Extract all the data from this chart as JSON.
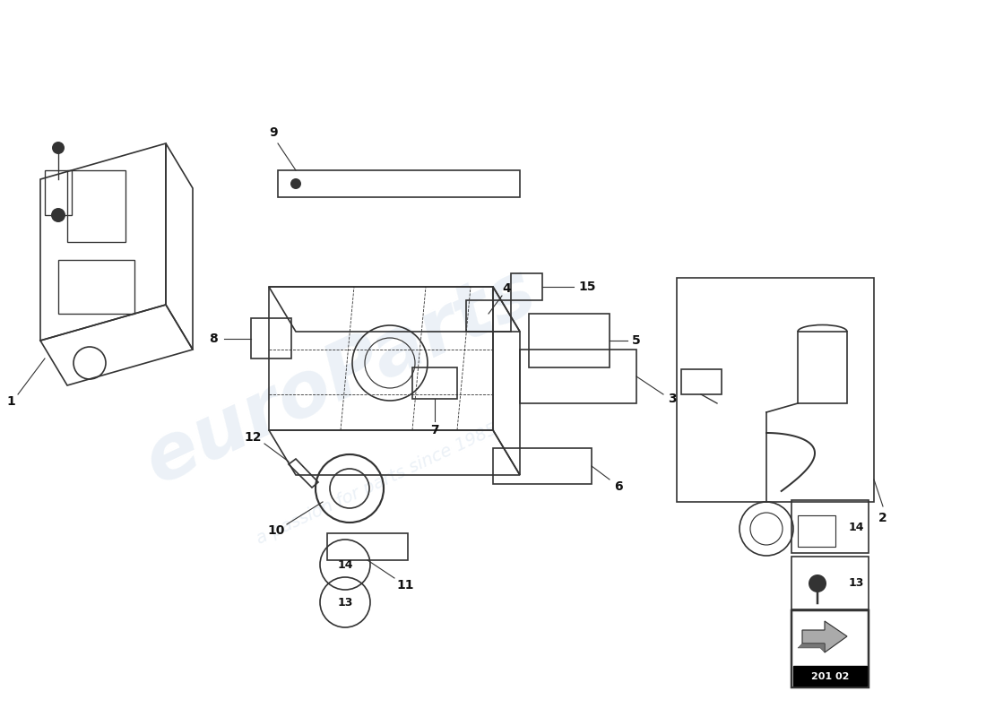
{
  "bg_color": "#ffffff",
  "watermark_text": "euroParts",
  "watermark_subtext": "a passion for parts since 1985",
  "watermark_color": "#c8d8e8",
  "watermark_alpha": 0.35,
  "part_number_box": "201 02",
  "part_numbers": [
    1,
    2,
    3,
    4,
    5,
    6,
    7,
    8,
    9,
    10,
    11,
    12,
    13,
    14,
    15
  ],
  "line_color": "#333333",
  "line_width": 1.2,
  "label_fontsize": 10,
  "label_color": "#111111"
}
